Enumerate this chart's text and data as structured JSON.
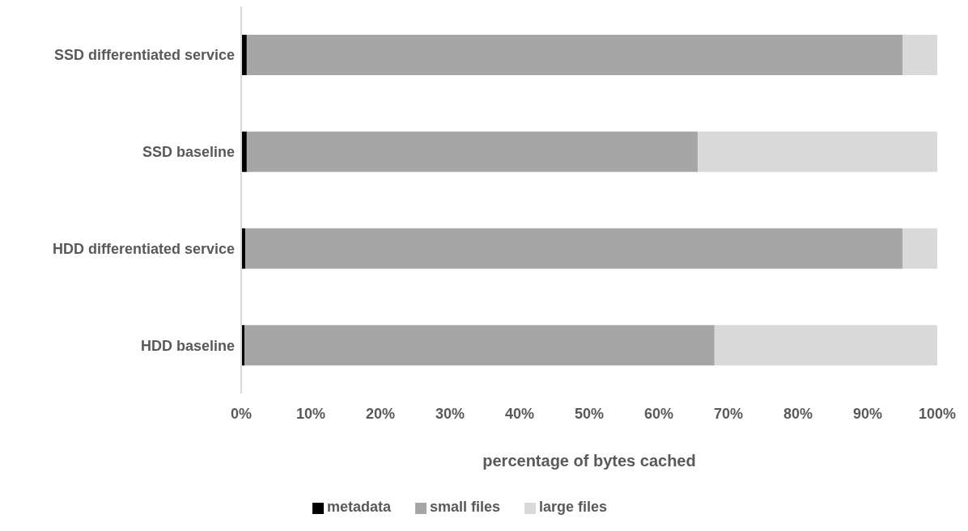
{
  "chart_data": {
    "type": "bar",
    "orientation": "horizontal",
    "stacked": true,
    "xlabel": "percentage of bytes cached",
    "categories": [
      "SSD differentiated service",
      "SSD baseline",
      "HDD differentiated service",
      "HDD baseline"
    ],
    "series": [
      {
        "name": "metadata",
        "color": "#000000",
        "values": [
          0.8,
          0.8,
          0.6,
          0.5
        ]
      },
      {
        "name": "small files",
        "color": "#a6a6a6",
        "values": [
          94.2,
          64.8,
          94.4,
          67.5
        ]
      },
      {
        "name": "large files",
        "color": "#d9d9d9",
        "values": [
          5,
          34.4,
          5,
          32
        ]
      }
    ],
    "xlim": [
      0,
      100
    ],
    "xticks": [
      {
        "value": 0,
        "label": "0%"
      },
      {
        "value": 10,
        "label": "10%"
      },
      {
        "value": 20,
        "label": "20%"
      },
      {
        "value": 30,
        "label": "30%"
      },
      {
        "value": 40,
        "label": "40%"
      },
      {
        "value": 50,
        "label": "50%"
      },
      {
        "value": 60,
        "label": "60%"
      },
      {
        "value": 70,
        "label": "70%"
      },
      {
        "value": 80,
        "label": "80%"
      },
      {
        "value": 90,
        "label": "90%"
      },
      {
        "value": 100,
        "label": "100%"
      }
    ],
    "grid": false,
    "legend": "bottom"
  }
}
